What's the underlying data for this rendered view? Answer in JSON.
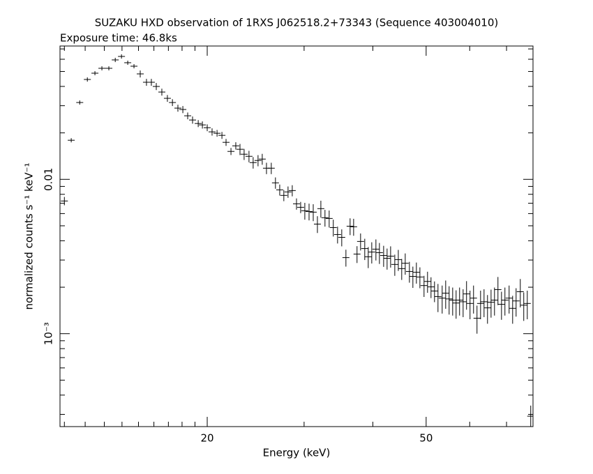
{
  "chart_data": {
    "type": "scatter",
    "title": "SUZAKU HXD observation of 1RXS J062518.2+73343 (Sequence 403004010)",
    "subtitle": "Exposure time: 46.8ks",
    "xlabel": "Energy (keV)",
    "ylabel": "normalized counts s⁻¹ keV⁻¹",
    "xscale": "log",
    "yscale": "log",
    "xlim": [
      10.8,
      78.2
    ],
    "ylim": [
      0.00025,
      0.0731
    ],
    "xticks": [
      20,
      50
    ],
    "xminorticks": [
      11,
      12,
      13,
      14,
      15,
      16,
      17,
      18,
      19,
      30,
      40,
      60,
      70
    ],
    "yticks": [
      0.01,
      {
        "value": 0.001,
        "label": "10⁻³"
      }
    ],
    "yminorticks": [
      0.0003,
      0.0004,
      0.0005,
      0.0006,
      0.0007,
      0.0008,
      0.0009,
      0.002,
      0.003,
      0.004,
      0.005,
      0.006,
      0.007,
      0.008,
      0.009,
      0.02,
      0.03,
      0.04,
      0.05,
      0.06,
      0.07
    ],
    "color": "#000000",
    "x": [
      11.0,
      11.32,
      11.73,
      12.11,
      12.5,
      12.87,
      13.25,
      13.61,
      13.97,
      14.34,
      14.72,
      15.11,
      15.51,
      15.83,
      16.16,
      16.54,
      16.93,
      17.29,
      17.69,
      18.06,
      18.43,
      18.81,
      19.26,
      19.6,
      20.0,
      20.41,
      20.84,
      21.27,
      21.64,
      22.09,
      22.54,
      22.94,
      23.34,
      23.82,
      24.24,
      24.74,
      25.18,
      25.63,
      26.15,
      26.61,
      27.09,
      27.56,
      28.05,
      28.55,
      29.06,
      29.57,
      30.09,
      30.63,
      31.17,
      31.72,
      32.18,
      32.74,
      33.32,
      33.9,
      34.51,
      35.12,
      35.74,
      36.37,
      36.91,
      37.44,
      38.0,
      38.67,
      39.24,
      39.82,
      40.52,
      41.12,
      41.85,
      42.46,
      43.09,
      43.85,
      44.5,
      45.14,
      45.81,
      46.62,
      47.3,
      48.0,
      48.71,
      49.56,
      50.29,
      51.03,
      51.78,
      52.54,
      53.47,
      54.26,
      55.05,
      55.87,
      56.68,
      57.51,
      58.37,
      59.21,
      60.08,
      60.97,
      61.86,
      62.79,
      63.71,
      64.64,
      65.61,
      66.56,
      67.53,
      68.54,
      69.53,
      70.76,
      71.81,
      72.86,
      74.15,
      75.23,
      76.35,
      77.46
    ],
    "values": [
      0.00724,
      0.01792,
      0.03146,
      0.04437,
      0.04873,
      0.05242,
      0.05242,
      0.0594,
      0.06257,
      0.05697,
      0.05408,
      0.04823,
      0.04256,
      0.04256,
      0.03998,
      0.03678,
      0.03349,
      0.03146,
      0.02894,
      0.02835,
      0.02581,
      0.02424,
      0.02301,
      0.02253,
      0.02161,
      0.02031,
      0.01989,
      0.01928,
      0.01737,
      0.01517,
      0.01649,
      0.01566,
      0.01455,
      0.0141,
      0.01284,
      0.01325,
      0.01353,
      0.01181,
      0.01181,
      0.00949,
      0.00855,
      0.00787,
      0.00829,
      0.00846,
      0.00694,
      0.00659,
      0.00626,
      0.00619,
      0.00613,
      0.00513,
      0.00646,
      0.00564,
      0.00558,
      0.00487,
      0.00439,
      0.00421,
      0.00311,
      0.00497,
      0.00493,
      0.00328,
      0.00396,
      0.00356,
      0.00315,
      0.00338,
      0.00353,
      0.00335,
      0.00321,
      0.00308,
      0.00318,
      0.00281,
      0.00302,
      0.00264,
      0.00286,
      0.00253,
      0.00235,
      0.0025,
      0.00233,
      0.00205,
      0.00218,
      0.00201,
      0.00189,
      0.00174,
      0.0017,
      0.00183,
      0.00168,
      0.00165,
      0.00158,
      0.00165,
      0.00161,
      0.00181,
      0.00157,
      0.0017,
      0.00126,
      0.00157,
      0.00161,
      0.00147,
      0.0016,
      0.00165,
      0.00193,
      0.00155,
      0.00165,
      0.0017,
      0.00146,
      0.00163,
      0.00187,
      0.00153,
      0.00157,
      0.000292
    ],
    "errors": [
      0.00045,
      0.00056,
      0.00098,
      0.0014,
      0.0015,
      0.0016,
      0.0016,
      0.0019,
      0.002,
      0.0018,
      0.0017,
      0.0025,
      0.0022,
      0.0022,
      0.0021,
      0.0019,
      0.0017,
      0.0016,
      0.0015,
      0.0015,
      0.0013,
      0.0013,
      0.0012,
      0.0012,
      0.0011,
      0.0011,
      0.001,
      0.001,
      0.0009,
      0.0008,
      0.0009,
      0.0013,
      0.0012,
      0.0012,
      0.0011,
      0.0011,
      0.0011,
      0.001,
      0.001,
      0.0008,
      0.0007,
      0.00065,
      0.0007,
      0.0007,
      0.00058,
      0.00055,
      0.00078,
      0.00077,
      0.00077,
      0.00064,
      0.00081,
      0.0007,
      0.0007,
      0.00061,
      0.00055,
      0.00053,
      0.00039,
      0.00062,
      0.00062,
      0.00041,
      0.0005,
      0.00056,
      0.00049,
      0.00053,
      0.00055,
      0.00052,
      0.0005,
      0.00048,
      0.0005,
      0.00044,
      0.00047,
      0.00041,
      0.00045,
      0.00039,
      0.00037,
      0.00039,
      0.00036,
      0.00032,
      0.00034,
      0.00031,
      0.00029,
      0.00036,
      0.00035,
      0.00038,
      0.00035,
      0.00034,
      0.00033,
      0.00034,
      0.00033,
      0.00038,
      0.00033,
      0.00035,
      0.00026,
      0.00033,
      0.00033,
      0.00031,
      0.00033,
      0.00034,
      0.0004,
      0.00032,
      0.00034,
      0.00035,
      0.0003,
      0.00034,
      0.00039,
      0.00032,
      0.00033,
      5e-05
    ]
  }
}
